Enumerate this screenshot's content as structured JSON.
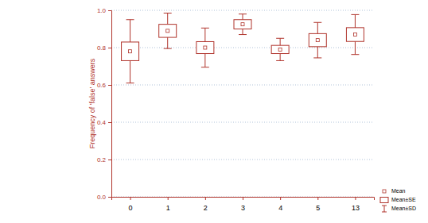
{
  "chart_data": {
    "type": "box",
    "y_label": "Frequency of 'false' answers",
    "categories": [
      "0",
      "1",
      "2",
      "3",
      "4",
      "5",
      "13"
    ],
    "values": [
      0.78,
      0.89,
      0.8,
      0.925,
      0.79,
      0.84,
      0.87
    ],
    "se": [
      0.05,
      0.035,
      0.032,
      0.025,
      0.022,
      0.035,
      0.037
    ],
    "sd": [
      0.17,
      0.095,
      0.105,
      0.055,
      0.06,
      0.095,
      0.107
    ],
    "legend_labels": [
      "Mean",
      "Mean±SE",
      "Mean±SD"
    ],
    "legend": "right",
    "color": "#b0342c",
    "ylim": [
      0,
      1
    ],
    "yticks": [
      {
        "value": 0,
        "label": "0.0"
      },
      0.2,
      0.4,
      0.6,
      0.8,
      {
        "value": 1,
        "label": "1.0"
      }
    ],
    "grid": true
  }
}
